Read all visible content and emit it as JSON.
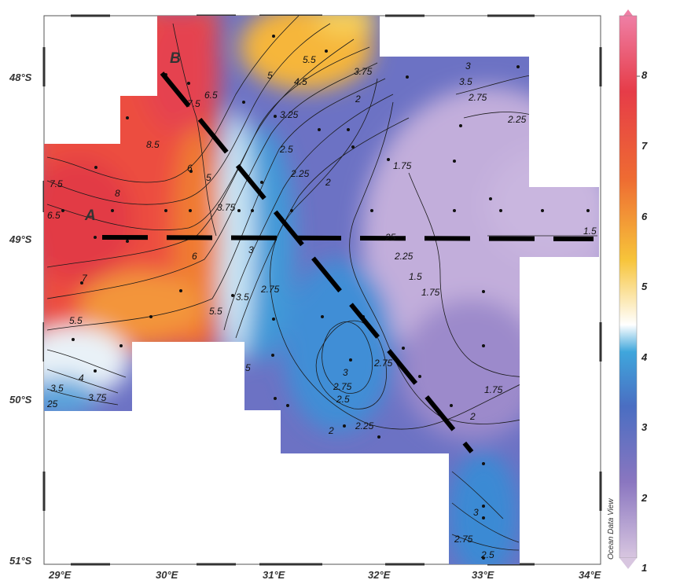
{
  "map": {
    "lon_labels": [
      "29°E",
      "30°E",
      "31°E",
      "32°E",
      "33°E",
      "34°E"
    ],
    "lat_labels": [
      "48°S",
      "49°S",
      "50°S",
      "51°S"
    ],
    "point_labels": {
      "a": "A",
      "b": "B"
    },
    "contour_labels": [
      "5.5",
      "3.75",
      "4.5",
      "3.5",
      "3",
      "2.75",
      "3.25",
      "2.25",
      "2",
      "1.75",
      "8.5",
      "7.5",
      "6.5",
      "5",
      "6",
      "8",
      "7",
      "4",
      "2.5",
      "1.5",
      "25"
    ],
    "watermark": "Ocean Data View"
  },
  "colorbar": {
    "tick_labels": [
      "1",
      "2",
      "3",
      "4",
      "5",
      "6",
      "7",
      "8"
    ],
    "min": 1,
    "max": 8,
    "colors": [
      "#d8c6e0",
      "#8a76c0",
      "#4a6ec2",
      "#3fa6dc",
      "#ffffff",
      "#f7c43a",
      "#ee6b32",
      "#e63c48",
      "#ef7fa5"
    ]
  }
}
